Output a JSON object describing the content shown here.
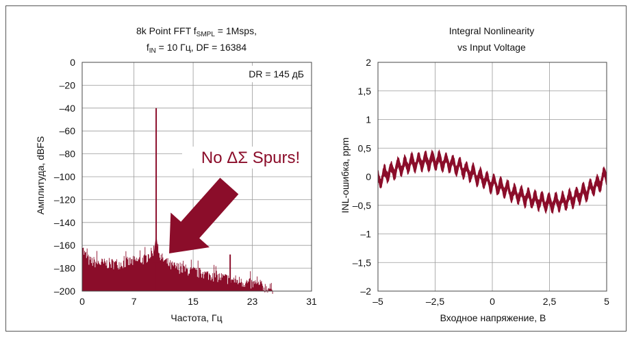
{
  "colors": {
    "series": "#8b0d2a",
    "grid": "#9a9a9a",
    "frame": "#444444",
    "text": "#111111"
  },
  "chart_data": [
    {
      "type": "line",
      "title_parts": {
        "l1_a": "8k Point FFT f",
        "l1_sub": "SMPL",
        "l1_b": " = 1Msps,",
        "l2_a": "f",
        "l2_sub": "IN",
        "l2_b": " = 10 Гц, DF = 16384"
      },
      "xlabel": "Частота, Гц",
      "ylabel": "Амплитуда, dBFS",
      "xlim": [
        0,
        31
      ],
      "ylim": [
        -200,
        0
      ],
      "xticks": [
        0,
        7,
        15,
        23,
        31
      ],
      "yticks": [
        0,
        -20,
        -40,
        -60,
        -80,
        -100,
        -120,
        -140,
        -160,
        -180,
        -200
      ],
      "ytick_labels": [
        "0",
        "–20",
        "–40",
        "–60",
        "–80",
        "–100",
        "–120",
        "–140",
        "–160",
        "–180",
        "–200"
      ],
      "grid": true,
      "annotations": {
        "dr": "DR = 145 дБ",
        "spurs": "No ΔΣ Spurs!"
      },
      "series": [
        {
          "fundamental": {
            "x": 10,
            "y": -40
          },
          "spur": {
            "x": 20,
            "y": -168
          },
          "noise_envelope": {
            "x": [
              0,
              0.2,
              1,
              3,
              5,
              7,
              8.5,
              9.5,
              10,
              10.5,
              12,
              15,
              18,
              21,
              23,
              25,
              25.8
            ],
            "y": [
              -158,
              -168,
              -176,
              -178,
              -178,
              -176,
              -174,
              -168,
              -160,
              -172,
              -180,
              -185,
              -189,
              -193,
              -196,
              -199,
              -200
            ]
          }
        }
      ]
    },
    {
      "type": "line",
      "title_lines": [
        "Integral Nonlinearity",
        "vs Input Voltage"
      ],
      "xlabel": "Входное напряжение, В",
      "ylabel": "INL-ошибка, ppm",
      "xlim": [
        -5,
        5
      ],
      "ylim": [
        -2,
        2
      ],
      "xticks": [
        -5,
        -2.5,
        0,
        2.5,
        5
      ],
      "xtick_labels": [
        "–5",
        "–2,5",
        "0",
        "2,5",
        "5"
      ],
      "yticks": [
        2,
        1.5,
        1,
        0.5,
        0,
        -0.5,
        -1,
        -1.5,
        -2
      ],
      "ytick_labels": [
        "2",
        "1,5",
        "1",
        "0,5",
        "0",
        "–0,5",
        "–1",
        "–1,5",
        "–2"
      ],
      "grid": true,
      "series": [
        {
          "x": [
            -5,
            -4.5,
            -4,
            -3.5,
            -3,
            -2.5,
            -2,
            -1.5,
            -1,
            -0.5,
            0,
            0.5,
            1,
            1.5,
            2,
            2.5,
            3,
            3.5,
            4,
            4.5,
            5
          ],
          "center": [
            -0.05,
            0.08,
            0.18,
            0.24,
            0.27,
            0.28,
            0.25,
            0.18,
            0.08,
            -0.02,
            -0.12,
            -0.2,
            -0.3,
            -0.36,
            -0.42,
            -0.46,
            -0.44,
            -0.38,
            -0.28,
            -0.16,
            0.02
          ],
          "band_halfwidth": 0.09,
          "ripple_amplitude": 0.09,
          "ripple_period": 0.3
        }
      ]
    }
  ]
}
